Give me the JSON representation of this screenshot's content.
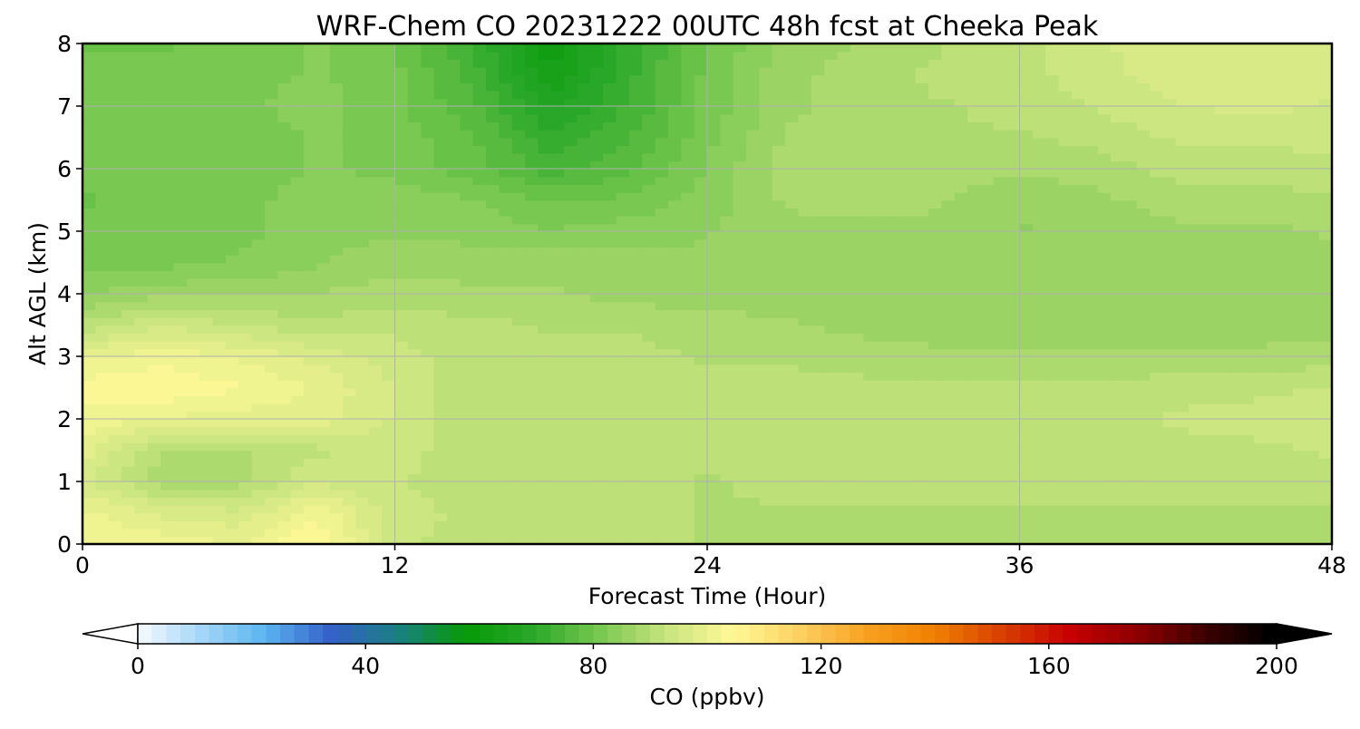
{
  "chart_data": {
    "type": "heatmap",
    "title": "WRF-Chem CO  20231222 00UTC 48h fcst at Cheeka Peak",
    "xlabel": "Forecast Time (Hour)",
    "ylabel": "Alt AGL (km)",
    "xlim": [
      0,
      48
    ],
    "ylim": [
      0,
      8
    ],
    "xticks": [
      0,
      12,
      24,
      36,
      48
    ],
    "yticks": [
      0,
      1,
      2,
      3,
      4,
      5,
      6,
      7,
      8
    ],
    "grid": true,
    "x": [
      0,
      3,
      6,
      9,
      12,
      15,
      18,
      21,
      24,
      27,
      30,
      33,
      36,
      39,
      42,
      45,
      48
    ],
    "y": [
      0,
      0.5,
      1,
      1.5,
      2,
      2.5,
      3,
      3.5,
      4,
      4.5,
      5,
      5.5,
      6,
      6.5,
      7,
      7.5,
      8
    ],
    "z_units": "ppbv",
    "z": [
      [
        104,
        103,
        101,
        107,
        94,
        93,
        93,
        92,
        91,
        91,
        91,
        91,
        91,
        91,
        91,
        91,
        91
      ],
      [
        102,
        98,
        97,
        103,
        95,
        93,
        92,
        92,
        91,
        91,
        91,
        91,
        91,
        91,
        91,
        91,
        91
      ],
      [
        97,
        90,
        90,
        96,
        94,
        92,
        92,
        92,
        91,
        92,
        92,
        92,
        92,
        92,
        92,
        92,
        93
      ],
      [
        100,
        91,
        91,
        93,
        95,
        92,
        92,
        92,
        92,
        92,
        92,
        93,
        93,
        93,
        93,
        93,
        94
      ],
      [
        103,
        101,
        100,
        100,
        96,
        92,
        92,
        92,
        93,
        93,
        93,
        93,
        93,
        93,
        94,
        95,
        96
      ],
      [
        105,
        106,
        104,
        101,
        96,
        92,
        92,
        92,
        92,
        92,
        92,
        92,
        92,
        92,
        93,
        93,
        94
      ],
      [
        101,
        103,
        101,
        98,
        95,
        92,
        92,
        92,
        91,
        91,
        90,
        89,
        89,
        89,
        89,
        89,
        90
      ],
      [
        92,
        96,
        94,
        92,
        93,
        92,
        91,
        91,
        90,
        89,
        88,
        88,
        88,
        88,
        88,
        88,
        88
      ],
      [
        86,
        88,
        88,
        89,
        90,
        89,
        89,
        88,
        87,
        88,
        88,
        88,
        88,
        88,
        88,
        88,
        88
      ],
      [
        83,
        83,
        84,
        86,
        88,
        88,
        88,
        87,
        87,
        88,
        88,
        88,
        88,
        88,
        88,
        88,
        88
      ],
      [
        82,
        82,
        83,
        85,
        86,
        85,
        84,
        85,
        86,
        88,
        88,
        88,
        86,
        87,
        88,
        88,
        89
      ],
      [
        81,
        82,
        83,
        85,
        85,
        84,
        81,
        82,
        85,
        89,
        90,
        89,
        87,
        88,
        90,
        90,
        91
      ],
      [
        82,
        82,
        82,
        84,
        83,
        80,
        75,
        78,
        84,
        90,
        91,
        90,
        89,
        90,
        92,
        92,
        93
      ],
      [
        83,
        82,
        82,
        84,
        83,
        79,
        72,
        76,
        83,
        89,
        91,
        91,
        91,
        92,
        94,
        94,
        95
      ],
      [
        83,
        83,
        83,
        85,
        82,
        77,
        68,
        74,
        82,
        88,
        90,
        91,
        92,
        94,
        96,
        97,
        96
      ],
      [
        82,
        82,
        83,
        84,
        82,
        75,
        64,
        73,
        82,
        88,
        90,
        92,
        93,
        95,
        98,
        98,
        97
      ],
      [
        81,
        81,
        82,
        84,
        81,
        74,
        62,
        72,
        81,
        87,
        89,
        91,
        93,
        96,
        98,
        98,
        97
      ]
    ],
    "colorbar": {
      "label": "CO  (ppbv)",
      "min": 0,
      "max": 200,
      "ticks": [
        0,
        40,
        80,
        120,
        160,
        200
      ],
      "extend": "both",
      "colors": [
        "#ffffff",
        "#a8d8f8",
        "#5bb5f0",
        "#3460c8",
        "#1a8080",
        "#079a07",
        "#2aa82a",
        "#78c850",
        "#c8e480",
        "#fff996",
        "#fcd060",
        "#f8a020",
        "#f08000",
        "#d84000",
        "#c80000",
        "#900000",
        "#400000",
        "#000000"
      ]
    }
  }
}
